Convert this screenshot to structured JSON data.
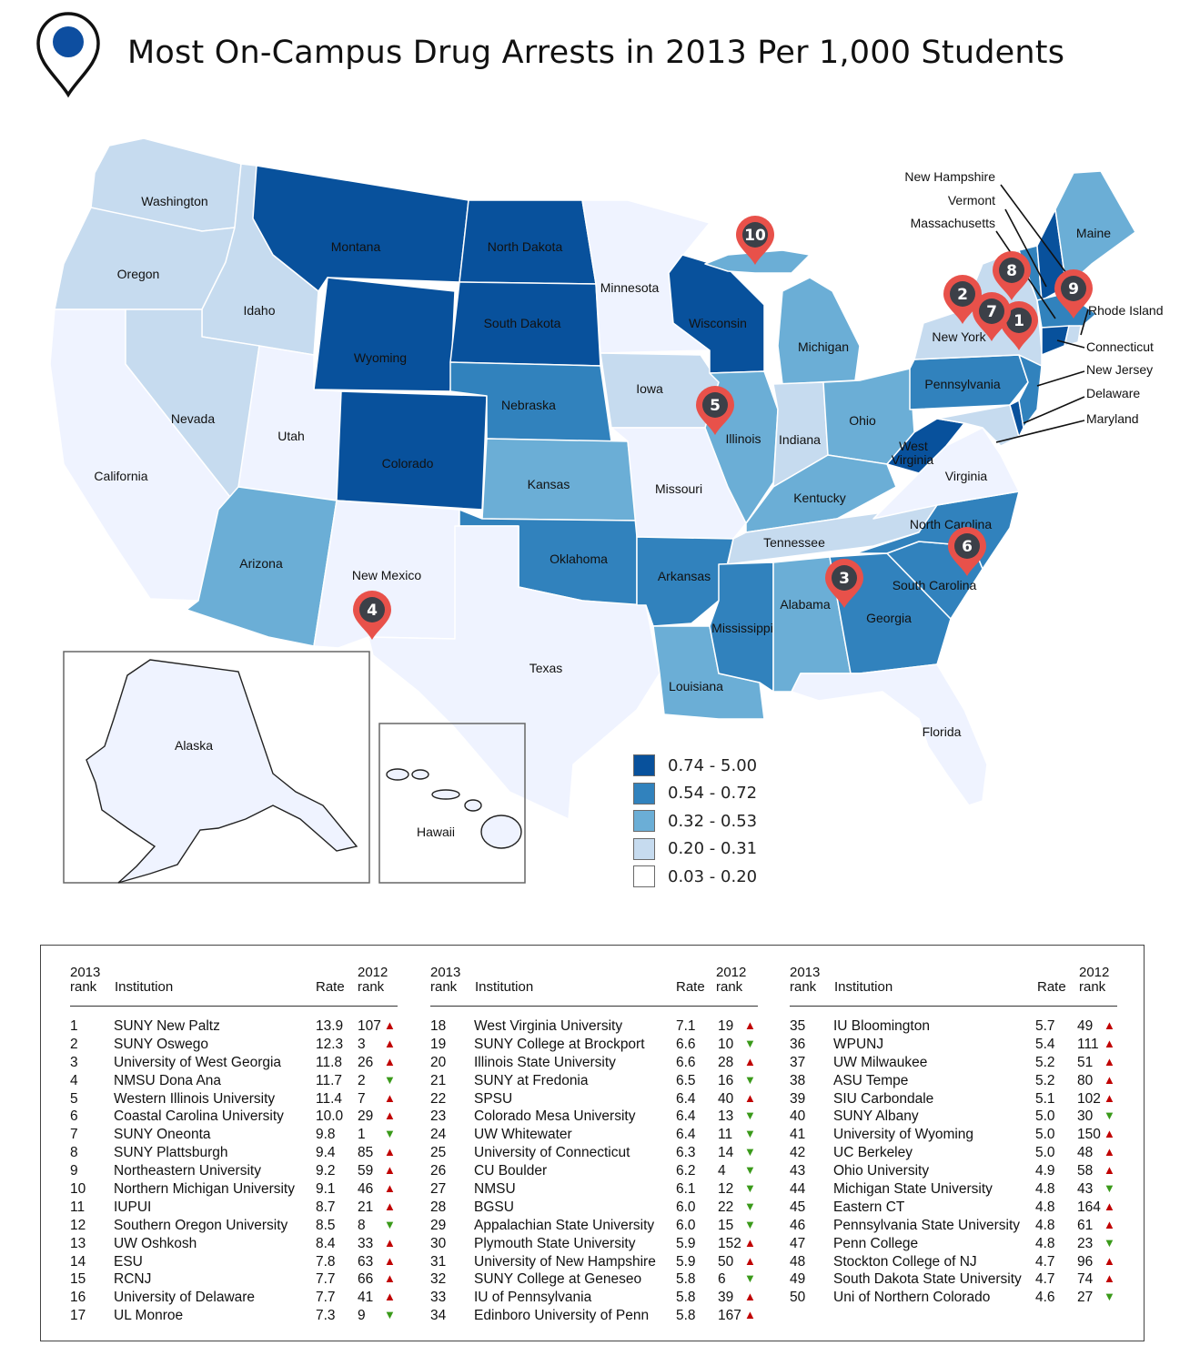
{
  "title": "Most On-Campus Drug Arrests in 2013 Per 1,000 Students",
  "colors": {
    "c1": "#08519c",
    "c2": "#3182bd",
    "c3": "#6baed6",
    "c4": "#c6dbef",
    "c5": "#eff3ff",
    "pin": "#e8514a",
    "pin_circle": "#3c4048",
    "arrow_up": "#c00000",
    "arrow_down": "#3a9a1a"
  },
  "icons": {
    "header": "map-pin-icon",
    "trend_up": "triangle-up-icon",
    "trend_down": "triangle-down-icon"
  },
  "legend": [
    {
      "label": "0.74 - 5.00",
      "color": "#08519c"
    },
    {
      "label": "0.54 - 0.72",
      "color": "#3182bd"
    },
    {
      "label": "0.32 - 0.53",
      "color": "#6baed6"
    },
    {
      "label": "0.20 - 0.31",
      "color": "#c6dbef"
    },
    {
      "label": "0.03 - 0.20",
      "color": "#ffffff"
    }
  ],
  "states": {
    "washington": "Washington",
    "oregon": "Oregon",
    "california": "California",
    "idaho": "Idaho",
    "nevada": "Nevada",
    "utah": "Utah",
    "arizona": "Arizona",
    "montana": "Montana",
    "wyoming": "Wyoming",
    "colorado": "Colorado",
    "new_mexico": "New Mexico",
    "north_dakota": "North Dakota",
    "south_dakota": "South Dakota",
    "nebraska": "Nebraska",
    "kansas": "Kansas",
    "oklahoma": "Oklahoma",
    "texas": "Texas",
    "minnesota": "Minnesota",
    "iowa": "Iowa",
    "missouri": "Missouri",
    "arkansas": "Arkansas",
    "louisiana": "Louisiana",
    "wisconsin": "Wisconsin",
    "illinois": "Illinois",
    "michigan": "Michigan",
    "indiana": "Indiana",
    "ohio": "Ohio",
    "kentucky": "Kentucky",
    "tennessee": "Tennessee",
    "mississippi": "Mississippi",
    "alabama": "Alabama",
    "georgia": "Georgia",
    "florida": "Florida",
    "south_carolina": "South Carolina",
    "north_carolina": "North Carolina",
    "virginia": "Virginia",
    "west_virginia_1": "West",
    "west_virginia_2": "Virginia",
    "pennsylvania": "Pennsylvania",
    "new_york": "New York",
    "maine": "Maine",
    "alaska": "Alaska",
    "hawaii": "Hawaii",
    "new_hampshire": "New Hampshire",
    "vermont": "Vermont",
    "massachusetts": "Massachusetts",
    "rhode_island": "Rhode Island",
    "connecticut": "Connecticut",
    "new_jersey": "New Jersey",
    "delaware": "Delaware",
    "maryland": "Maryland"
  },
  "pins": [
    "1",
    "2",
    "3",
    "4",
    "5",
    "6",
    "7",
    "8",
    "9",
    "10"
  ],
  "table": {
    "headers": {
      "rank_2013_line1": "2013",
      "rank_2013_line2": "rank",
      "institution": "Institution",
      "rate": "Rate",
      "rank_2012_line1": "2012",
      "rank_2012_line2": "rank"
    },
    "rows": [
      {
        "rank": "1",
        "institution": "SUNY New Paltz",
        "rate": "13.9",
        "prev": "107",
        "trend": "up"
      },
      {
        "rank": "2",
        "institution": "SUNY Oswego",
        "rate": "12.3",
        "prev": "3",
        "trend": "up"
      },
      {
        "rank": "3",
        "institution": "University of West Georgia",
        "rate": "11.8",
        "prev": "26",
        "trend": "up"
      },
      {
        "rank": "4",
        "institution": "NMSU Dona Ana",
        "rate": "11.7",
        "prev": "2",
        "trend": "down"
      },
      {
        "rank": "5",
        "institution": "Western Illinois University",
        "rate": "11.4",
        "prev": "7",
        "trend": "up"
      },
      {
        "rank": "6",
        "institution": "Coastal Carolina University",
        "rate": "10.0",
        "prev": "29",
        "trend": "up"
      },
      {
        "rank": "7",
        "institution": "SUNY Oneonta",
        "rate": "9.8",
        "prev": "1",
        "trend": "down"
      },
      {
        "rank": "8",
        "institution": "SUNY Plattsburgh",
        "rate": "9.4",
        "prev": "85",
        "trend": "up"
      },
      {
        "rank": "9",
        "institution": "Northeastern University",
        "rate": "9.2",
        "prev": "59",
        "trend": "up"
      },
      {
        "rank": "10",
        "institution": "Northern Michigan University",
        "rate": "9.1",
        "prev": "46",
        "trend": "up"
      },
      {
        "rank": "11",
        "institution": "IUPUI",
        "rate": "8.7",
        "prev": "21",
        "trend": "up"
      },
      {
        "rank": "12",
        "institution": "Southern Oregon University",
        "rate": "8.5",
        "prev": "8",
        "trend": "down"
      },
      {
        "rank": "13",
        "institution": "UW Oshkosh",
        "rate": "8.4",
        "prev": "33",
        "trend": "up"
      },
      {
        "rank": "14",
        "institution": "ESU",
        "rate": "7.8",
        "prev": "63",
        "trend": "up"
      },
      {
        "rank": "15",
        "institution": "RCNJ",
        "rate": "7.7",
        "prev": "66",
        "trend": "up"
      },
      {
        "rank": "16",
        "institution": "University of Delaware",
        "rate": "7.7",
        "prev": "41",
        "trend": "up"
      },
      {
        "rank": "17",
        "institution": "UL Monroe",
        "rate": "7.3",
        "prev": "9",
        "trend": "down"
      },
      {
        "rank": "18",
        "institution": "West Virginia University",
        "rate": "7.1",
        "prev": "19",
        "trend": "up"
      },
      {
        "rank": "19",
        "institution": "SUNY College at Brockport",
        "rate": "6.6",
        "prev": "10",
        "trend": "down"
      },
      {
        "rank": "20",
        "institution": "Illinois State University",
        "rate": "6.6",
        "prev": "28",
        "trend": "up"
      },
      {
        "rank": "21",
        "institution": "SUNY at Fredonia",
        "rate": "6.5",
        "prev": "16",
        "trend": "down"
      },
      {
        "rank": "22",
        "institution": "SPSU",
        "rate": "6.4",
        "prev": "40",
        "trend": "up"
      },
      {
        "rank": "23",
        "institution": "Colorado Mesa University",
        "rate": "6.4",
        "prev": "13",
        "trend": "down"
      },
      {
        "rank": "24",
        "institution": "UW Whitewater",
        "rate": "6.4",
        "prev": "11",
        "trend": "down"
      },
      {
        "rank": "25",
        "institution": "University of Connecticut",
        "rate": "6.3",
        "prev": "14",
        "trend": "down"
      },
      {
        "rank": "26",
        "institution": "CU Boulder",
        "rate": "6.2",
        "prev": "4",
        "trend": "down"
      },
      {
        "rank": "27",
        "institution": "NMSU",
        "rate": "6.1",
        "prev": "12",
        "trend": "down"
      },
      {
        "rank": "28",
        "institution": "BGSU",
        "rate": "6.0",
        "prev": "22",
        "trend": "down"
      },
      {
        "rank": "29",
        "institution": "Appalachian State University",
        "rate": "6.0",
        "prev": "15",
        "trend": "down"
      },
      {
        "rank": "30",
        "institution": "Plymouth State University",
        "rate": "5.9",
        "prev": "152",
        "trend": "up"
      },
      {
        "rank": "31",
        "institution": "University of New Hampshire",
        "rate": "5.9",
        "prev": "50",
        "trend": "up"
      },
      {
        "rank": "32",
        "institution": "SUNY College at Geneseo",
        "rate": "5.8",
        "prev": "6",
        "trend": "down"
      },
      {
        "rank": "33",
        "institution": "IU of Pennsylvania",
        "rate": "5.8",
        "prev": "39",
        "trend": "up"
      },
      {
        "rank": "34",
        "institution": "Edinboro University of Penn",
        "rate": "5.8",
        "prev": "167",
        "trend": "up"
      },
      {
        "rank": "35",
        "institution": "IU Bloomington",
        "rate": "5.7",
        "prev": "49",
        "trend": "up"
      },
      {
        "rank": "36",
        "institution": "WPUNJ",
        "rate": "5.4",
        "prev": "111",
        "trend": "up"
      },
      {
        "rank": "37",
        "institution": "UW Milwaukee",
        "rate": "5.2",
        "prev": "51",
        "trend": "up"
      },
      {
        "rank": "38",
        "institution": "ASU Tempe",
        "rate": "5.2",
        "prev": "80",
        "trend": "up"
      },
      {
        "rank": "39",
        "institution": "SIU Carbondale",
        "rate": "5.1",
        "prev": "102",
        "trend": "up"
      },
      {
        "rank": "40",
        "institution": "SUNY Albany",
        "rate": "5.0",
        "prev": "30",
        "trend": "down"
      },
      {
        "rank": "41",
        "institution": "University of Wyoming",
        "rate": "5.0",
        "prev": "150",
        "trend": "up"
      },
      {
        "rank": "42",
        "institution": "UC Berkeley",
        "rate": "5.0",
        "prev": "48",
        "trend": "up"
      },
      {
        "rank": "43",
        "institution": "Ohio University",
        "rate": "4.9",
        "prev": "58",
        "trend": "up"
      },
      {
        "rank": "44",
        "institution": "Michigan State University",
        "rate": "4.8",
        "prev": "43",
        "trend": "down"
      },
      {
        "rank": "45",
        "institution": "Eastern CT",
        "rate": "4.8",
        "prev": "164",
        "trend": "up"
      },
      {
        "rank": "46",
        "institution": "Pennsylvania State University",
        "rate": "4.8",
        "prev": "61",
        "trend": "up"
      },
      {
        "rank": "47",
        "institution": "Penn College",
        "rate": "4.8",
        "prev": "23",
        "trend": "down"
      },
      {
        "rank": "48",
        "institution": "Stockton College of NJ",
        "rate": "4.7",
        "prev": "96",
        "trend": "up"
      },
      {
        "rank": "49",
        "institution": "South Dakota State University",
        "rate": "4.7",
        "prev": "74",
        "trend": "up"
      },
      {
        "rank": "50",
        "institution": "Uni of Northern Colorado",
        "rate": "4.6",
        "prev": "27",
        "trend": "down"
      }
    ]
  }
}
